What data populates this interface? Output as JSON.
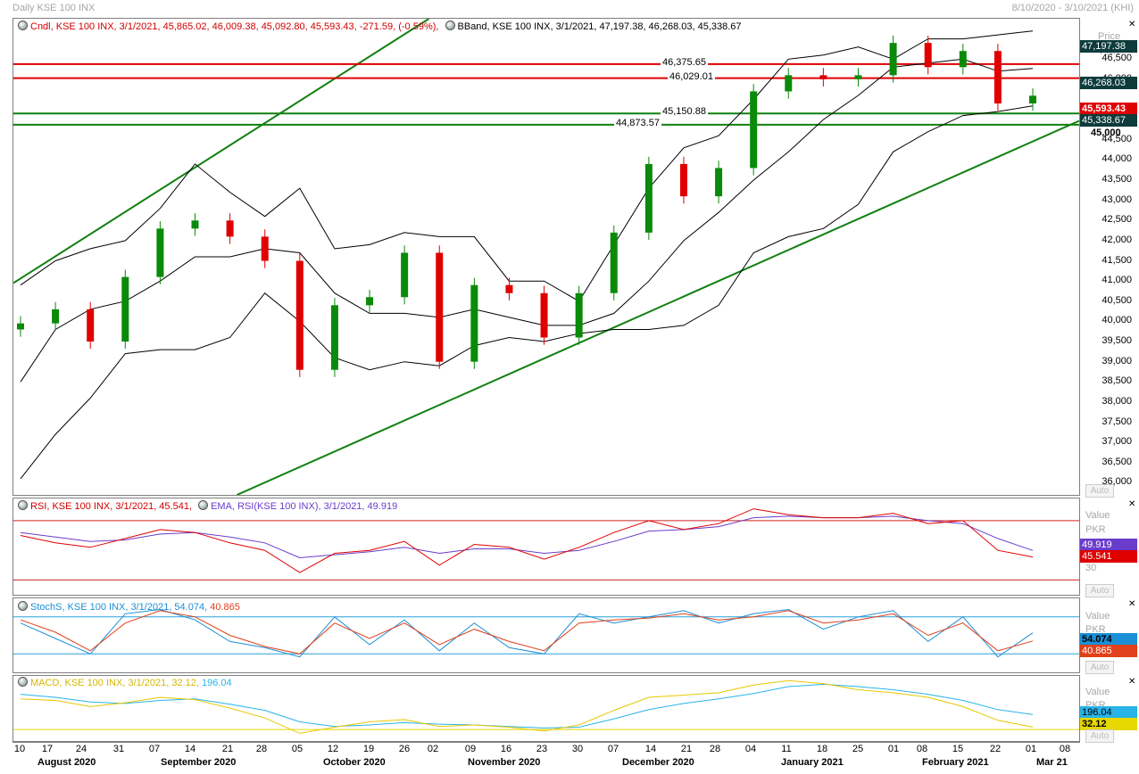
{
  "header": {
    "title": "Daily KSE 100 INX",
    "date_range": "8/10/2020 - 3/10/2021 (KHI)"
  },
  "price_panel": {
    "candle_label": "Cndl, KSE 100 INX, 3/1/2021, 45,865.02, 46,009.38, 45,092.80, 45,593.43, -271.59, (-0.59%),",
    "bband_label": "BBand, KSE 100 INX, 3/1/2021, 47,197.38, 46,268.03, 45,338.67",
    "axis_title": "Price",
    "axis_unit": "PKR",
    "ticks": [
      "46,500",
      "46,000",
      "45,000",
      "44,500",
      "44,000",
      "43,500",
      "43,000",
      "42,500",
      "42,000",
      "41,500",
      "41,000",
      "40,500",
      "40,000",
      "39,500",
      "39,000",
      "38,500",
      "38,000",
      "37,500",
      "37,000",
      "36,500",
      "36,000"
    ],
    "tags": {
      "upper_band": "47,197.38",
      "mid_band": "46,268.03",
      "last_price": "45,593.43",
      "lower_band": "45,338.67",
      "round_level": "45,000"
    },
    "hlines": [
      {
        "label": "46,375.65",
        "value": 46375.65,
        "color": "#e00000"
      },
      {
        "label": "46,029.01",
        "value": 46029.01,
        "color": "#e00000"
      },
      {
        "label": "45,150.88",
        "value": 45150.88,
        "color": "#108010"
      },
      {
        "label": "44,873.57",
        "value": 44873.57,
        "color": "#108010"
      }
    ],
    "auto_label": "Auto"
  },
  "rsi_panel": {
    "rsi_label": "RSI, KSE 100 INX, 3/1/2021, 45.541,",
    "ema_label": "EMA, RSI(KSE 100 INX), 3/1/2021, 49.919",
    "axis_title": "Value",
    "axis_unit": "PKR",
    "tick_30": "30",
    "tags": {
      "ema": "49.919",
      "rsi": "45.541"
    },
    "auto_label": "Auto"
  },
  "stoch_panel": {
    "label_a": "StochS, KSE 100 INX, 3/1/2021, 54.074,",
    "label_b": "40.865",
    "axis_title": "Value",
    "axis_unit": "PKR",
    "tags": {
      "k": "54.074",
      "d": "40.865"
    },
    "auto_label": "Auto"
  },
  "macd_panel": {
    "label_a": "MACD, KSE 100 INX, 3/1/2021, 32.12,",
    "label_b": "196.04",
    "axis_title": "Value",
    "axis_unit": "PKR",
    "tags": {
      "signal": "196.04",
      "macd": "32.12"
    },
    "auto_label": "Auto"
  },
  "x_axis": {
    "day_ticks": [
      "10",
      "17",
      "24",
      "31",
      "07",
      "14",
      "21",
      "28",
      "05",
      "12",
      "19",
      "26",
      "02",
      "09",
      "16",
      "23",
      "30",
      "07",
      "14",
      "21",
      "28",
      "04",
      "11",
      "18",
      "25",
      "01",
      "08",
      "15",
      "22",
      "01",
      "08"
    ],
    "months": [
      "August 2020",
      "September 2020",
      "October 2020",
      "November 2020",
      "December 2020",
      "January 2021",
      "February 2021",
      "Mar 21"
    ]
  },
  "colors": {
    "up": "#0a8a0a",
    "down": "#e00000",
    "band": "#000000",
    "trend": "#108010",
    "rsi": "#e00000",
    "ema": "#6a3ccc",
    "stoch_k": "#1a8fd6",
    "stoch_d": "#e0401a",
    "macd": "#e6c800",
    "signal": "#28b4e8"
  },
  "chart_data": {
    "type": "candlestick",
    "ylim": [
      35700,
      47500
    ],
    "x": [
      "2020-08-10",
      "2020-08-17",
      "2020-08-24",
      "2020-08-31",
      "2020-09-07",
      "2020-09-14",
      "2020-09-21",
      "2020-09-28",
      "2020-10-05",
      "2020-10-12",
      "2020-10-19",
      "2020-10-26",
      "2020-11-02",
      "2020-11-09",
      "2020-11-16",
      "2020-11-23",
      "2020-11-30",
      "2020-12-07",
      "2020-12-14",
      "2020-12-21",
      "2020-12-28",
      "2021-01-04",
      "2021-01-11",
      "2021-01-18",
      "2021-01-25",
      "2021-02-01",
      "2021-02-08",
      "2021-02-15",
      "2021-02-22",
      "2021-03-01"
    ],
    "series": [
      {
        "name": "Cndl",
        "close": [
          39950,
          40300,
          39500,
          41100,
          42300,
          42500,
          42100,
          41500,
          38800,
          40400,
          40600,
          41700,
          39000,
          40900,
          40700,
          39600,
          40700,
          42200,
          43900,
          43100,
          43800,
          45700,
          46100,
          46000,
          46100,
          46900,
          46300,
          46700,
          45400,
          45593
        ]
      },
      {
        "name": "BBand",
        "upper": [
          40900,
          41500,
          41800,
          42000,
          42800,
          43900,
          43200,
          42600,
          43300,
          41800,
          41900,
          42200,
          42100,
          42100,
          41000,
          41000,
          40500,
          41900,
          43300,
          44300,
          44600,
          45500,
          46500,
          46600,
          46800,
          46500,
          47000,
          47000,
          47100,
          47197
        ]
      },
      {
        "name": "BBand mid",
        "middle": [
          38500,
          39800,
          40300,
          40500,
          41000,
          41600,
          41600,
          41800,
          41700,
          40700,
          40200,
          40200,
          40100,
          40300,
          40100,
          39900,
          39900,
          40200,
          41000,
          42000,
          42700,
          43500,
          44200,
          45000,
          45600,
          46300,
          46400,
          46500,
          46200,
          46268
        ]
      },
      {
        "name": "BBand lower",
        "lower": [
          36100,
          37200,
          38100,
          39200,
          39300,
          39300,
          39600,
          40700,
          40000,
          39100,
          38800,
          39000,
          38900,
          39400,
          39600,
          39500,
          39700,
          39800,
          39800,
          39900,
          40400,
          41700,
          42100,
          42300,
          42900,
          44200,
          44700,
          45100,
          45200,
          45338
        ]
      }
    ],
    "rsi": [
      60,
      55,
      52,
      58,
      64,
      62,
      55,
      50,
      35,
      48,
      50,
      56,
      40,
      54,
      52,
      44,
      52,
      62,
      70,
      64,
      68,
      78,
      74,
      72,
      72,
      75,
      68,
      70,
      50,
      45.541
    ],
    "rsi_ema": [
      62,
      59,
      56,
      57,
      61,
      62,
      59,
      55,
      45,
      47,
      49,
      52,
      48,
      51,
      51,
      48,
      50,
      56,
      63,
      64,
      66,
      72,
      73,
      72,
      72,
      73,
      70,
      68,
      58,
      49.919
    ],
    "stoch_k": [
      70,
      45,
      20,
      85,
      92,
      75,
      40,
      30,
      15,
      80,
      35,
      75,
      25,
      70,
      30,
      20,
      85,
      70,
      80,
      90,
      70,
      85,
      92,
      60,
      80,
      90,
      40,
      80,
      15,
      54.074
    ],
    "stoch_d": [
      75,
      55,
      25,
      70,
      90,
      80,
      50,
      32,
      20,
      70,
      45,
      70,
      35,
      60,
      40,
      25,
      70,
      75,
      78,
      85,
      75,
      80,
      90,
      70,
      75,
      85,
      50,
      70,
      25,
      40.865
    ],
    "macd": [
      400,
      380,
      300,
      350,
      420,
      390,
      280,
      150,
      -50,
      30,
      100,
      130,
      40,
      60,
      30,
      -20,
      60,
      250,
      420,
      450,
      480,
      580,
      640,
      600,
      520,
      480,
      420,
      300,
      120,
      32.12
    ],
    "macd_signal": [
      460,
      420,
      360,
      340,
      380,
      400,
      330,
      250,
      100,
      40,
      60,
      90,
      70,
      60,
      40,
      20,
      30,
      140,
      260,
      340,
      400,
      470,
      560,
      590,
      560,
      520,
      460,
      380,
      260,
      196.04
    ],
    "rsi_levels": [
      70,
      30
    ],
    "stoch_levels": [
      80,
      20
    ]
  }
}
